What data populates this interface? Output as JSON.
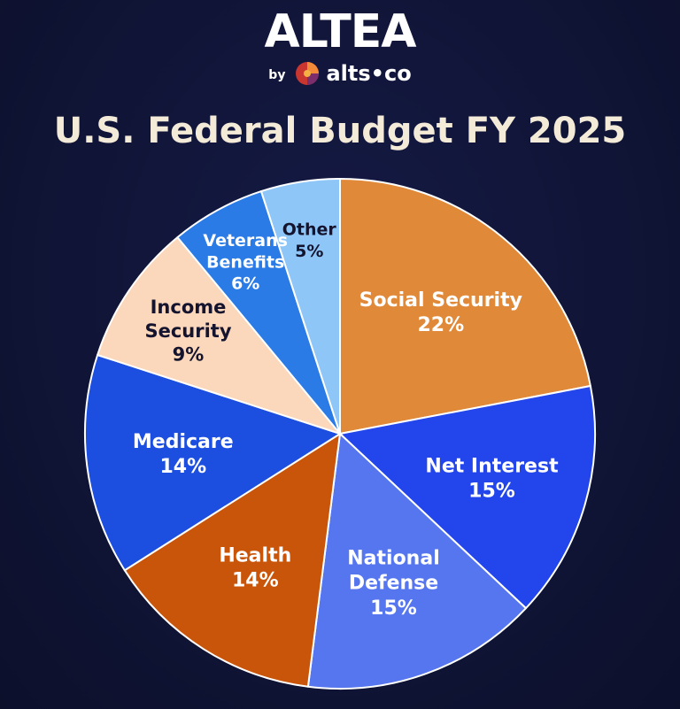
{
  "brand": {
    "name": "ALTEA",
    "by_text": "by",
    "partner": "alts•co",
    "logo_icon": "alts-co-logo-icon"
  },
  "colors": {
    "background": "#101436",
    "title": "#f4ead8",
    "social_security": "#e08938",
    "net_interest": "#2346ec",
    "national_defense": "#5576ee",
    "health": "#c9550a",
    "medicare": "#1c4fe0",
    "income_security": "#fbd7bb",
    "veterans_benefits": "#2a7be6",
    "other": "#8fc6f8"
  },
  "chart_data": {
    "type": "pie",
    "title": "U.S. Federal Budget FY 2025",
    "slices": [
      {
        "label": [
          "Social Security"
        ],
        "value": 22,
        "display": "22%",
        "color": "#e08938",
        "text_color": "#ffffff"
      },
      {
        "label": [
          "Net Interest"
        ],
        "value": 15,
        "display": "15%",
        "color": "#2346ec",
        "text_color": "#ffffff"
      },
      {
        "label": [
          "National",
          "Defense"
        ],
        "value": 15,
        "display": "15%",
        "color": "#5576ee",
        "text_color": "#ffffff"
      },
      {
        "label": [
          "Health"
        ],
        "value": 14,
        "display": "14%",
        "color": "#c9550a",
        "text_color": "#ffffff"
      },
      {
        "label": [
          "Medicare"
        ],
        "value": 14,
        "display": "14%",
        "color": "#1c4fe0",
        "text_color": "#ffffff"
      },
      {
        "label": [
          "Income",
          "Security"
        ],
        "value": 9,
        "display": "9%",
        "color": "#fbd7bb",
        "text_color": "#14142e"
      },
      {
        "label": [
          "Veterans",
          "Benefits"
        ],
        "value": 6,
        "display": "6%",
        "color": "#2a7be6",
        "text_color": "#ffffff"
      },
      {
        "label": [
          "Other"
        ],
        "value": 5,
        "display": "5%",
        "color": "#8fc6f8",
        "text_color": "#14142e"
      }
    ]
  }
}
